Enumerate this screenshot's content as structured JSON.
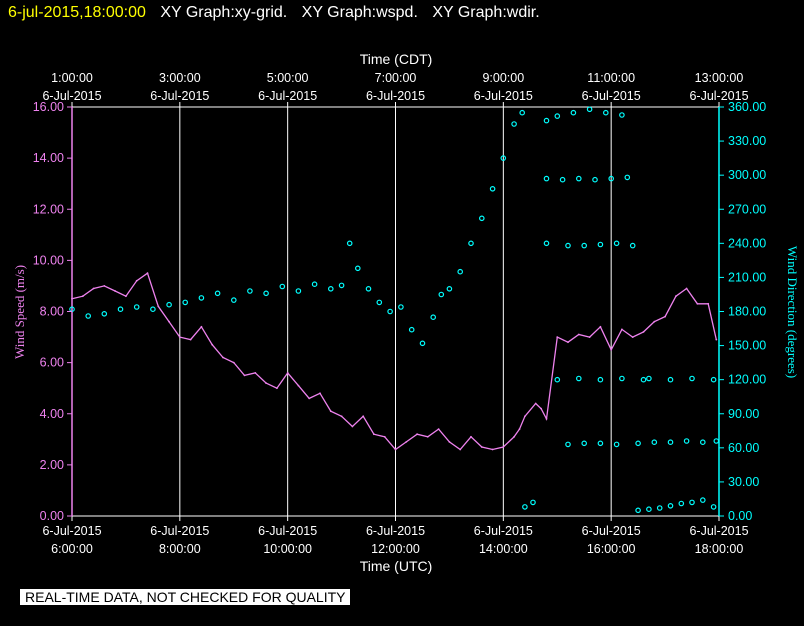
{
  "header": {
    "timestamp": "6-jul-2015,18:00:00",
    "graphs": [
      "XY Graph:xy-grid.",
      "XY Graph:wspd.",
      "XY Graph:wdir."
    ]
  },
  "footer": "REAL-TIME DATA, NOT CHECKED FOR QUALITY",
  "colors": {
    "wspd": "#ee82ee",
    "wdir": "#00ffff",
    "grid": "#ffffff",
    "background": "#000000",
    "header_time": "#ffff00"
  },
  "chart_data": {
    "type": "line",
    "x_unit": "hours UTC on 6-Jul-2015",
    "xlim": [
      6,
      18
    ],
    "xlabel_bottom": "Time (UTC)",
    "xlabel_top": "Time (CDT)",
    "bottom_ticks": [
      {
        "x": 6,
        "date": "6-Jul-2015",
        "time": "6:00:00"
      },
      {
        "x": 8,
        "date": "6-Jul-2015",
        "time": "8:00:00"
      },
      {
        "x": 10,
        "date": "6-Jul-2015",
        "time": "10:00:00"
      },
      {
        "x": 12,
        "date": "6-Jul-2015",
        "time": "12:00:00"
      },
      {
        "x": 14,
        "date": "6-Jul-2015",
        "time": "14:00:00"
      },
      {
        "x": 16,
        "date": "6-Jul-2015",
        "time": "16:00:00"
      },
      {
        "x": 18,
        "date": "6-Jul-2015",
        "time": "18:00:00"
      }
    ],
    "top_ticks": [
      {
        "x": 6,
        "time": "1:00:00",
        "date": "6-Jul-2015"
      },
      {
        "x": 8,
        "time": "3:00:00",
        "date": "6-Jul-2015"
      },
      {
        "x": 10,
        "time": "5:00:00",
        "date": "6-Jul-2015"
      },
      {
        "x": 12,
        "time": "7:00:00",
        "date": "6-Jul-2015"
      },
      {
        "x": 14,
        "time": "9:00:00",
        "date": "6-Jul-2015"
      },
      {
        "x": 16,
        "time": "11:00:00",
        "date": "6-Jul-2015"
      },
      {
        "x": 18,
        "time": "13:00:00",
        "date": "6-Jul-2015"
      }
    ],
    "ylabel_left": "Wind Speed (m/s)",
    "ylim_left": [
      0,
      16
    ],
    "yticks_left": [
      "0.00",
      "2.00",
      "4.00",
      "6.00",
      "8.00",
      "10.00",
      "12.00",
      "14.00",
      "16.00"
    ],
    "ylabel_right": "Wind Direction (degrees)",
    "ylim_right": [
      0,
      360
    ],
    "yticks_right": [
      "0.00",
      "30.00",
      "60.00",
      "90.00",
      "120.00",
      "150.00",
      "180.00",
      "210.00",
      "240.00",
      "270.00",
      "300.00",
      "330.00",
      "360.00"
    ],
    "grid": "vertical lines at bottom ticks",
    "series": [
      {
        "name": "wspd",
        "style": "line",
        "x": [
          6.0,
          6.2,
          6.4,
          6.6,
          6.8,
          7.0,
          7.2,
          7.4,
          7.6,
          7.8,
          8.0,
          8.2,
          8.4,
          8.6,
          8.8,
          9.0,
          9.2,
          9.4,
          9.6,
          9.8,
          10.0,
          10.2,
          10.4,
          10.6,
          10.8,
          11.0,
          11.2,
          11.4,
          11.6,
          11.8,
          12.0,
          12.2,
          12.4,
          12.6,
          12.8,
          13.0,
          13.2,
          13.4,
          13.6,
          13.8,
          14.0,
          14.2,
          14.3,
          14.4,
          14.6,
          14.7,
          14.8,
          15.0,
          15.2,
          15.4,
          15.6,
          15.8,
          16.0,
          16.2,
          16.4,
          16.6,
          16.8,
          17.0,
          17.2,
          17.4,
          17.6,
          17.8,
          17.95
        ],
        "y": [
          8.5,
          8.6,
          8.9,
          9.0,
          8.8,
          8.6,
          9.2,
          9.5,
          8.2,
          7.6,
          7.0,
          6.9,
          7.4,
          6.7,
          6.2,
          6.0,
          5.5,
          5.6,
          5.2,
          5.0,
          5.6,
          5.1,
          4.6,
          4.8,
          4.1,
          3.9,
          3.5,
          3.9,
          3.2,
          3.1,
          2.6,
          2.9,
          3.2,
          3.1,
          3.4,
          2.9,
          2.6,
          3.1,
          2.7,
          2.6,
          2.7,
          3.1,
          3.4,
          3.9,
          4.4,
          4.2,
          3.8,
          7.0,
          6.8,
          7.1,
          7.0,
          7.4,
          6.5,
          7.3,
          7.0,
          7.2,
          7.6,
          7.8,
          8.6,
          8.9,
          8.3,
          8.3,
          6.9
        ]
      },
      {
        "name": "wdir",
        "style": "scatter",
        "x": [
          6.0,
          6.3,
          6.6,
          6.9,
          7.2,
          7.5,
          7.8,
          8.1,
          8.4,
          8.7,
          9.0,
          9.3,
          9.6,
          9.9,
          10.2,
          10.5,
          10.8,
          11.0,
          11.15,
          11.3,
          11.5,
          11.7,
          11.9,
          12.1,
          12.3,
          12.5,
          12.7,
          12.85,
          13.0,
          13.2,
          13.4,
          13.6,
          13.8,
          14.0,
          14.2,
          14.35,
          14.4,
          14.55,
          14.8,
          15.0,
          15.3,
          15.6,
          15.9,
          16.2,
          14.8,
          15.1,
          15.4,
          15.7,
          16.0,
          16.3,
          14.8,
          15.2,
          15.5,
          15.8,
          16.1,
          16.4,
          15.0,
          15.4,
          15.8,
          16.2,
          16.6,
          15.2,
          15.5,
          15.8,
          16.1,
          16.5,
          16.8,
          17.1,
          17.4,
          17.7,
          17.95,
          16.7,
          17.1,
          17.5,
          17.9,
          16.5,
          16.7,
          16.9,
          17.1,
          17.3,
          17.5,
          17.7,
          17.9
        ],
        "y": [
          182,
          176,
          178,
          182,
          184,
          182,
          186,
          188,
          192,
          196,
          190,
          198,
          196,
          202,
          198,
          204,
          200,
          203,
          240,
          218,
          200,
          188,
          180,
          184,
          164,
          152,
          175,
          195,
          200,
          215,
          240,
          262,
          288,
          315,
          345,
          355,
          8,
          12,
          348,
          352,
          355,
          358,
          355,
          353,
          297,
          296,
          297,
          296,
          297,
          298,
          240,
          238,
          238,
          239,
          240,
          238,
          120,
          121,
          120,
          121,
          120,
          63,
          64,
          64,
          63,
          64,
          65,
          65,
          66,
          65,
          66,
          121,
          120,
          121,
          120,
          5,
          6,
          7,
          9,
          11,
          12,
          14,
          8
        ]
      }
    ]
  }
}
